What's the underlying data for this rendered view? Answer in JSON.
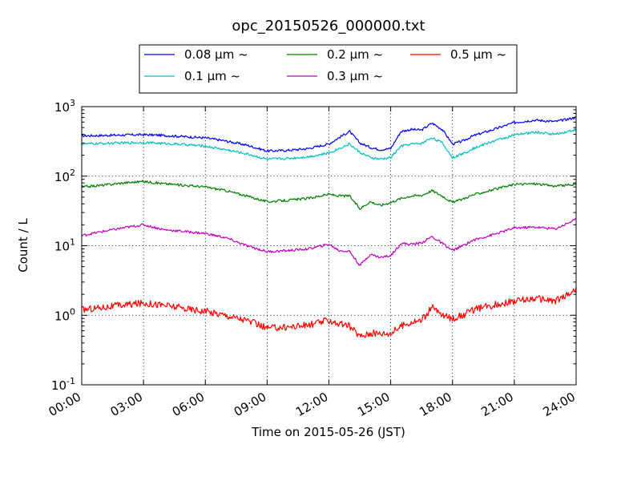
{
  "chart_data": {
    "type": "line",
    "title": "opc_20150526_000000.txt",
    "xlabel": "Time on 2015-05-26 (JST)",
    "ylabel": "Count / L",
    "yscale": "log",
    "ylim": [
      0.1,
      1000
    ],
    "xlim": [
      "00:00",
      "24:00"
    ],
    "grid": true,
    "legend_position": "top-center",
    "xticks": [
      "00:00",
      "03:00",
      "06:00",
      "09:00",
      "12:00",
      "15:00",
      "18:00",
      "21:00",
      "24:00"
    ],
    "yticks": [
      {
        "value": 0.1,
        "base": "10",
        "exp": "-1"
      },
      {
        "value": 1,
        "base": "10",
        "exp": "0"
      },
      {
        "value": 10,
        "base": "10",
        "exp": "1"
      },
      {
        "value": 100,
        "base": "10",
        "exp": "2"
      },
      {
        "value": 1000,
        "base": "10",
        "exp": "3"
      }
    ],
    "x": [
      "00:00",
      "01:00",
      "02:00",
      "03:00",
      "04:00",
      "05:00",
      "06:00",
      "07:00",
      "08:00",
      "09:00",
      "10:00",
      "11:00",
      "12:00",
      "12:30",
      "13:00",
      "13:30",
      "14:00",
      "14:30",
      "15:00",
      "15:30",
      "16:00",
      "16:30",
      "17:00",
      "17:30",
      "18:00",
      "18:30",
      "19:00",
      "20:00",
      "21:00",
      "22:00",
      "23:00",
      "24:00"
    ],
    "series": [
      {
        "name": "0.08 μm ~",
        "color": "#0000ff",
        "values": [
          380,
          385,
          390,
          395,
          385,
          370,
          355,
          320,
          280,
          230,
          235,
          250,
          290,
          360,
          440,
          300,
          260,
          240,
          250,
          440,
          470,
          460,
          580,
          470,
          290,
          320,
          380,
          470,
          590,
          640,
          610,
          700
        ]
      },
      {
        "name": "0.1 μm ~",
        "color": "#00bfbf",
        "values": [
          290,
          295,
          300,
          305,
          295,
          285,
          270,
          240,
          210,
          175,
          180,
          190,
          215,
          250,
          290,
          220,
          185,
          175,
          185,
          270,
          290,
          295,
          360,
          300,
          185,
          210,
          250,
          320,
          390,
          430,
          400,
          470
        ]
      },
      {
        "name": "0.2 μm ~",
        "color": "#008000",
        "values": [
          70,
          74,
          80,
          84,
          78,
          74,
          70,
          62,
          52,
          43,
          45,
          48,
          55,
          52,
          52,
          34,
          43,
          38,
          42,
          48,
          52,
          53,
          62,
          52,
          42,
          47,
          54,
          64,
          76,
          78,
          72,
          76
        ]
      },
      {
        "name": "0.3 μm ~",
        "color": "#bf00bf",
        "values": [
          14,
          16,
          18,
          20,
          17,
          16,
          15,
          13,
          10,
          8.2,
          8.5,
          9.0,
          10.5,
          8.5,
          8.3,
          5.2,
          7.5,
          6.8,
          7.2,
          10.8,
          10.5,
          11.0,
          13.5,
          10.8,
          8.5,
          10.0,
          12.0,
          14.5,
          18.0,
          18.5,
          17.5,
          24
        ]
      },
      {
        "name": "0.5 μm ~",
        "color": "#ff0000",
        "values": [
          1.2,
          1.3,
          1.4,
          1.5,
          1.4,
          1.25,
          1.15,
          1.0,
          0.85,
          0.65,
          0.68,
          0.72,
          0.85,
          0.75,
          0.7,
          0.5,
          0.55,
          0.55,
          0.55,
          0.7,
          0.8,
          0.85,
          1.3,
          1.0,
          0.9,
          1.0,
          1.2,
          1.4,
          1.6,
          1.75,
          1.6,
          2.3
        ]
      }
    ]
  }
}
